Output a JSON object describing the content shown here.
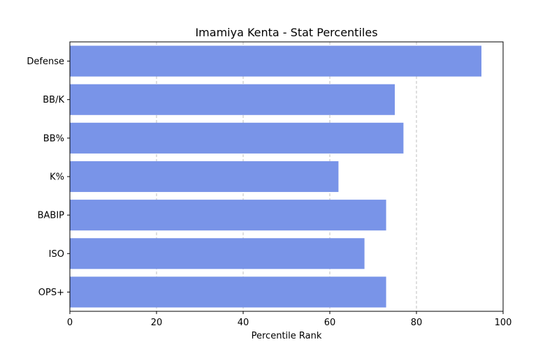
{
  "chart_data": {
    "type": "bar",
    "orientation": "horizontal",
    "title": "Imamiya Kenta - Stat Percentiles",
    "xlabel": "Percentile Rank",
    "ylabel": "",
    "xlim": [
      0,
      100
    ],
    "xticks": [
      0,
      20,
      40,
      60,
      80,
      100
    ],
    "categories": [
      "Defense",
      "BB/K",
      "BB%",
      "K%",
      "BABIP",
      "ISO",
      "OPS+"
    ],
    "values": [
      95,
      75,
      77,
      62,
      73,
      68,
      73
    ],
    "bar_color": "#7994e8",
    "grid": "x-dashed"
  }
}
